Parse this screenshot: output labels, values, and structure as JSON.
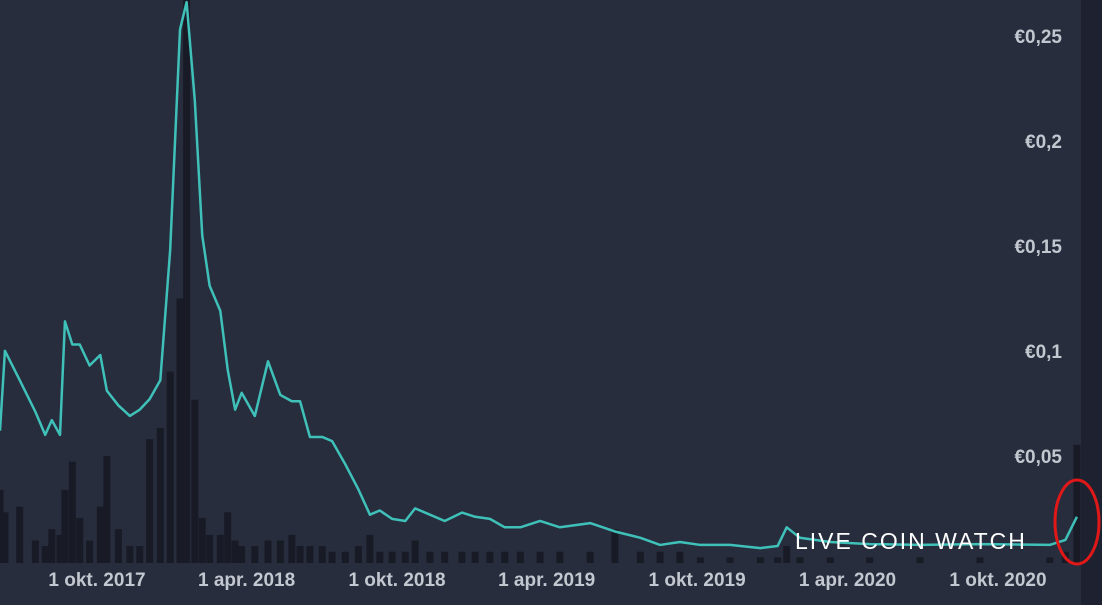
{
  "chart_data": {
    "type": "line",
    "watermark": "LIVE COIN WATCH",
    "x": [
      "2017-06-05",
      "2017-06-11",
      "2017-06-29",
      "2017-07-18",
      "2017-07-30",
      "2017-08-07",
      "2017-08-17",
      "2017-08-23",
      "2017-09-01",
      "2017-09-10",
      "2017-09-22",
      "2017-10-05",
      "2017-10-13",
      "2017-10-27",
      "2017-11-10",
      "2017-11-22",
      "2017-12-04",
      "2017-12-17",
      "2017-12-29",
      "2018-01-10",
      "2018-01-18",
      "2018-01-28",
      "2018-02-06",
      "2018-02-15",
      "2018-02-28",
      "2018-03-09",
      "2018-03-18",
      "2018-03-26",
      "2018-04-11",
      "2018-04-27",
      "2018-05-12",
      "2018-05-26",
      "2018-06-05",
      "2018-06-17",
      "2018-07-02",
      "2018-07-14",
      "2018-07-30",
      "2018-08-15",
      "2018-08-29",
      "2018-09-10",
      "2018-09-25",
      "2018-10-11",
      "2018-10-23",
      "2018-11-10",
      "2018-11-28",
      "2018-12-19",
      "2019-01-04",
      "2019-01-22",
      "2019-02-09",
      "2019-02-28",
      "2019-03-24",
      "2019-04-17",
      "2019-05-24",
      "2019-06-23",
      "2019-07-24",
      "2019-08-17",
      "2019-09-10",
      "2019-10-05",
      "2019-11-10",
      "2019-12-17",
      "2020-01-07",
      "2020-01-18",
      "2020-02-03",
      "2020-03-11",
      "2020-04-28",
      "2020-06-28",
      "2020-09-09",
      "2020-12-03",
      "2020-12-22",
      "2021-01-05"
    ],
    "series": [
      {
        "color": "#3fc1b9",
        "values": [
          0.063,
          0.101,
          0.087,
          0.072,
          0.061,
          0.068,
          0.061,
          0.115,
          0.104,
          0.104,
          0.094,
          0.099,
          0.082,
          0.075,
          0.07,
          0.073,
          0.078,
          0.087,
          0.149,
          0.254,
          0.267,
          0.22,
          0.156,
          0.132,
          0.12,
          0.092,
          0.073,
          0.081,
          0.07,
          0.096,
          0.08,
          0.077,
          0.077,
          0.06,
          0.06,
          0.058,
          0.047,
          0.035,
          0.023,
          0.025,
          0.021,
          0.02,
          0.026,
          0.023,
          0.02,
          0.024,
          0.022,
          0.021,
          0.017,
          0.017,
          0.02,
          0.017,
          0.019,
          0.015,
          0.012,
          0.0086,
          0.01,
          0.0086,
          0.0086,
          0.0071,
          0.0081,
          0.017,
          0.012,
          0.01,
          0.009,
          0.0086,
          0.009,
          0.0086,
          0.011,
          0.022
        ]
      },
      {
        "type": "bar",
        "axis": "y2",
        "color": "#181b26",
        "values": [
          13,
          9,
          10,
          4,
          3,
          6,
          5,
          13,
          18,
          8,
          4,
          10,
          19,
          6,
          3,
          3,
          22,
          24,
          34,
          47,
          100,
          29,
          8,
          5,
          5,
          9,
          4,
          3,
          3,
          4,
          4,
          5,
          3,
          3,
          3,
          2,
          2,
          3,
          5,
          2,
          2,
          2,
          4,
          2,
          2,
          2,
          2,
          2,
          2,
          2,
          2,
          2,
          2,
          6,
          2,
          2,
          2,
          1,
          1,
          1,
          1,
          3,
          1,
          1,
          1,
          1,
          1,
          1,
          2,
          21
        ]
      }
    ],
    "xlim": [
      "2017-06-05",
      "2021-01-10"
    ],
    "xticks": [
      {
        "value": "2017-10-01",
        "label": "1 okt. 2017"
      },
      {
        "value": "2018-04-01",
        "label": "1 apr. 2018"
      },
      {
        "value": "2018-10-01",
        "label": "1 okt. 2018"
      },
      {
        "value": "2019-04-01",
        "label": "1 apr. 2019"
      },
      {
        "value": "2019-10-01",
        "label": "1 okt. 2019"
      },
      {
        "value": "2020-04-01",
        "label": "1 apr. 2020"
      },
      {
        "value": "2020-10-01",
        "label": "1 okt. 2020"
      }
    ],
    "ylim": [
      0,
      0.268
    ],
    "yticks": [
      {
        "value": 0.05,
        "label": "€0,05"
      },
      {
        "value": 0.1,
        "label": "€0,1"
      },
      {
        "value": 0.15,
        "label": "€0,15"
      },
      {
        "value": 0.2,
        "label": "€0,2"
      },
      {
        "value": 0.25,
        "label": "€0,25"
      }
    ],
    "y2lim": [
      0,
      100
    ],
    "grid": false
  }
}
